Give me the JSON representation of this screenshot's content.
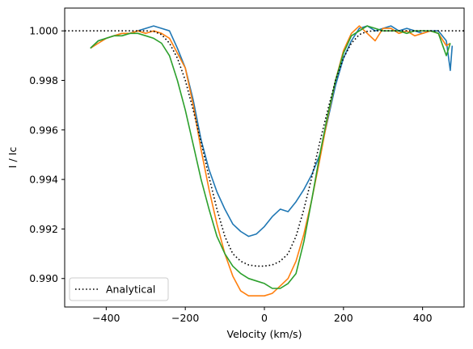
{
  "chart_data": {
    "type": "line",
    "title": "",
    "xlabel": "Velocity (km/s)",
    "ylabel": "I / Ic",
    "xlim": [
      -505,
      505
    ],
    "ylim": [
      0.98885,
      1.00092
    ],
    "xticks": [
      -400,
      -200,
      0,
      200,
      400
    ],
    "xtick_labels": [
      "−400",
      "−200",
      "0",
      "200",
      "400"
    ],
    "yticks": [
      0.99,
      0.992,
      0.994,
      0.996,
      0.998,
      1.0
    ],
    "ytick_labels": [
      "0.990",
      "0.992",
      "0.994",
      "0.996",
      "0.998",
      "1.000"
    ],
    "grid": false,
    "legend": {
      "placement": "lower-left",
      "entries": [
        "Analytical"
      ]
    },
    "series": [
      {
        "color": "#1f77b4",
        "style": "solid",
        "x": [
          -440,
          -420,
          -400,
          -380,
          -360,
          -340,
          -320,
          -300,
          -280,
          -260,
          -240,
          -220,
          -200,
          -180,
          -160,
          -140,
          -120,
          -100,
          -80,
          -60,
          -40,
          -20,
          0,
          20,
          40,
          60,
          80,
          100,
          120,
          140,
          160,
          180,
          200,
          220,
          240,
          260,
          280,
          300,
          320,
          340,
          360,
          380,
          400,
          420,
          440,
          460,
          470,
          475
        ],
        "y": [
          0.9993,
          0.9996,
          0.9997,
          0.9998,
          0.9999,
          0.9999,
          1.0,
          1.0001,
          1.0002,
          1.0001,
          1.0,
          0.9993,
          0.9985,
          0.9972,
          0.9956,
          0.9944,
          0.9935,
          0.9928,
          0.9922,
          0.9919,
          0.9917,
          0.9918,
          0.9921,
          0.9925,
          0.9928,
          0.9927,
          0.9931,
          0.9936,
          0.9942,
          0.995,
          0.9964,
          0.9978,
          0.9989,
          0.9996,
          1.0001,
          1.0002,
          1.0,
          1.0001,
          1.0002,
          1.0,
          1.0001,
          1.0,
          0.9999,
          1.0,
          1.0,
          0.9996,
          0.9984,
          0.9994
        ]
      },
      {
        "color": "#ff7f0e",
        "style": "solid",
        "x": [
          -440,
          -420,
          -400,
          -380,
          -360,
          -340,
          -320,
          -300,
          -280,
          -260,
          -240,
          -220,
          -200,
          -180,
          -160,
          -140,
          -120,
          -100,
          -80,
          -60,
          -40,
          -20,
          0,
          20,
          40,
          60,
          80,
          100,
          120,
          140,
          160,
          180,
          200,
          220,
          240,
          260,
          280,
          300,
          320,
          340,
          360,
          380,
          400,
          420,
          440,
          460,
          470
        ],
        "y": [
          0.9993,
          0.9995,
          0.9997,
          0.9998,
          0.9999,
          0.9999,
          1.0,
          0.9999,
          1.0,
          0.9999,
          0.9997,
          0.9991,
          0.9985,
          0.997,
          0.9952,
          0.9936,
          0.9922,
          0.991,
          0.9901,
          0.9895,
          0.9893,
          0.9893,
          0.9893,
          0.9894,
          0.9897,
          0.99,
          0.9907,
          0.9918,
          0.9932,
          0.9948,
          0.9965,
          0.998,
          0.9992,
          0.9999,
          1.0002,
          0.9999,
          0.9996,
          1.0001,
          1.0001,
          0.9999,
          1.0,
          0.9998,
          0.9999,
          1.0,
          0.9999,
          0.9994,
          0.9995
        ]
      },
      {
        "color": "#2ca02c",
        "style": "solid",
        "x": [
          -440,
          -420,
          -400,
          -380,
          -360,
          -340,
          -320,
          -300,
          -280,
          -260,
          -240,
          -220,
          -200,
          -180,
          -160,
          -140,
          -120,
          -100,
          -80,
          -60,
          -40,
          -20,
          0,
          20,
          40,
          60,
          80,
          100,
          120,
          140,
          160,
          180,
          200,
          220,
          240,
          260,
          280,
          300,
          320,
          340,
          360,
          380,
          400,
          420,
          440,
          460,
          470
        ],
        "y": [
          0.9993,
          0.9996,
          0.9997,
          0.9998,
          0.9998,
          0.9999,
          0.9999,
          0.9998,
          0.9997,
          0.9995,
          0.999,
          0.998,
          0.9968,
          0.9954,
          0.994,
          0.9928,
          0.9917,
          0.991,
          0.9905,
          0.9902,
          0.99,
          0.9899,
          0.9898,
          0.9896,
          0.9896,
          0.9898,
          0.9902,
          0.9915,
          0.9932,
          0.995,
          0.9966,
          0.998,
          0.9991,
          0.9998,
          1.0,
          1.0002,
          1.0001,
          1.0,
          1.0,
          1.0,
          0.9999,
          1.0,
          1.0,
          1.0,
          0.9999,
          0.999,
          0.9995
        ]
      },
      {
        "name": "Analytical",
        "color": "#000000",
        "style": "dotted",
        "x": [
          -505,
          -420,
          -340,
          -300,
          -280,
          -260,
          -240,
          -220,
          -200,
          -180,
          -160,
          -140,
          -120,
          -100,
          -80,
          -60,
          -40,
          -20,
          0,
          20,
          40,
          60,
          80,
          100,
          120,
          140,
          160,
          180,
          200,
          220,
          240,
          260,
          280,
          300,
          340,
          420,
          505
        ],
        "y": [
          1.0,
          1.0,
          1.0,
          1.0,
          0.99998,
          0.99985,
          0.9995,
          0.9989,
          0.998,
          0.9968,
          0.9955,
          0.9941,
          0.9928,
          0.9917,
          0.991,
          0.9907,
          0.99055,
          0.9905,
          0.9905,
          0.99055,
          0.9907,
          0.991,
          0.9917,
          0.9928,
          0.9941,
          0.9955,
          0.9968,
          0.998,
          0.9989,
          0.9995,
          0.99985,
          0.99998,
          1.0,
          1.0,
          1.0,
          1.0,
          1.0
        ]
      }
    ]
  }
}
